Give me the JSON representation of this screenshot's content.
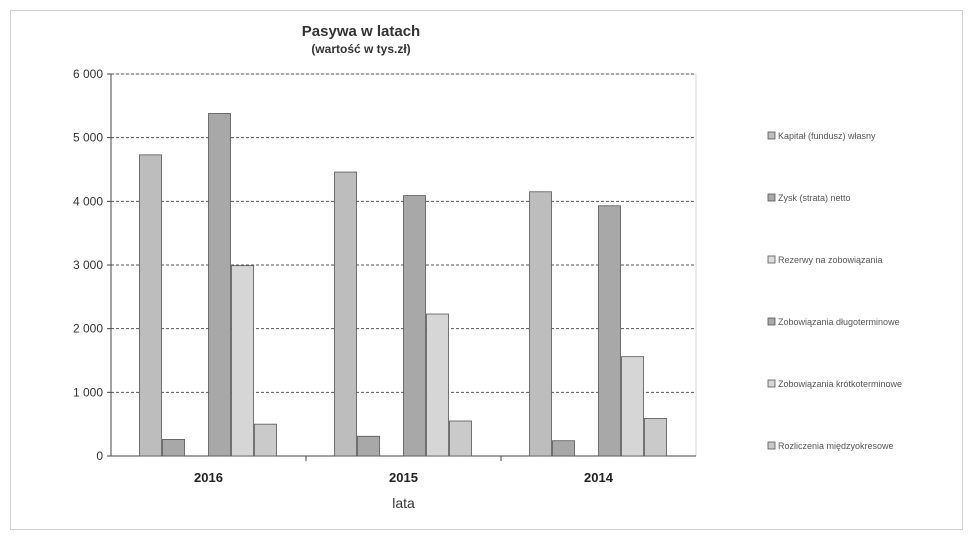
{
  "chart_data": {
    "type": "bar",
    "title": "Pasywa w latach",
    "subtitle": "(wartość w tys.zł)",
    "xlabel": "lata",
    "ylabel": "",
    "ylim": [
      0,
      6000
    ],
    "yticks": [
      0,
      1000,
      2000,
      3000,
      4000,
      5000,
      6000
    ],
    "ytick_labels": [
      "0",
      "1 000",
      "2 000",
      "3 000",
      "4 000",
      "5 000",
      "6 000"
    ],
    "grid": true,
    "legend_position": "right",
    "categories": [
      "2016",
      "2015",
      "2014"
    ],
    "series": [
      {
        "name": "Kapitał (fundusz) własny",
        "color": "#bdbdbd",
        "values": [
          4730,
          4460,
          4150
        ]
      },
      {
        "name": "Zysk (strata) netto",
        "color": "#a8a8a8",
        "values": [
          260,
          310,
          240
        ]
      },
      {
        "name": "Rezerwy na zobowiązania",
        "color": "#dcdcdc",
        "values": [
          0,
          0,
          0
        ]
      },
      {
        "name": "Zobowiązania długoterminowe",
        "color": "#a8a8a8",
        "values": [
          5380,
          4090,
          3930
        ]
      },
      {
        "name": "Zobowiązania krótkoterminowe",
        "color": "#d6d6d6",
        "values": [
          2990,
          2230,
          1560
        ]
      },
      {
        "name": "Rozliczenia międzyokresowe",
        "color": "#cacaca",
        "values": [
          500,
          550,
          590
        ]
      }
    ]
  }
}
